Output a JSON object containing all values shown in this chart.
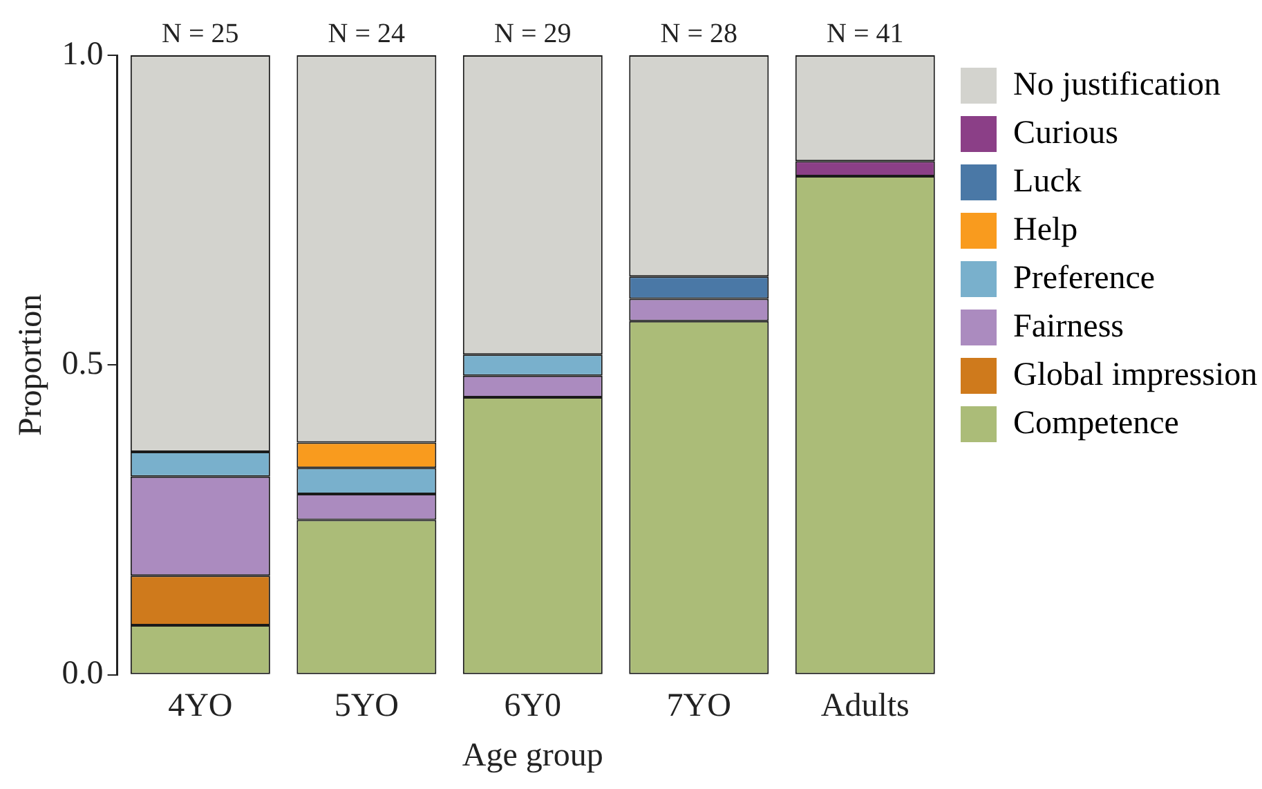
{
  "chart_data": {
    "type": "bar",
    "stacked": true,
    "xlabel": "Age group",
    "ylabel": "Proportion",
    "categories": [
      "4YO",
      "5YO",
      "6Y0",
      "7YO",
      "Adults"
    ],
    "series": [
      {
        "name": "Competence",
        "color": "#abbc78",
        "values": [
          0.08,
          0.25,
          0.448,
          0.571,
          0.805
        ]
      },
      {
        "name": "Global impression",
        "color": "#cf7a1c",
        "values": [
          0.08,
          null,
          null,
          null,
          null
        ]
      },
      {
        "name": "Fairness",
        "color": "#ab8bbf",
        "values": [
          0.16,
          0.042,
          0.035,
          0.036,
          null
        ]
      },
      {
        "name": "Preference",
        "color": "#79b0cc",
        "values": [
          0.04,
          0.042,
          0.034,
          null,
          null
        ]
      },
      {
        "name": "Help",
        "color": "#f99b1e",
        "values": [
          null,
          0.041,
          null,
          null,
          null
        ]
      },
      {
        "name": "Luck",
        "color": "#4a78a6",
        "values": [
          null,
          null,
          null,
          0.036,
          null
        ]
      },
      {
        "name": "Curious",
        "color": "#8b3f87",
        "values": [
          null,
          null,
          null,
          null,
          0.024
        ]
      },
      {
        "name": "No justification",
        "color": "#d3d3ce",
        "values": [
          0.64,
          0.625,
          0.483,
          0.357,
          0.171
        ]
      }
    ],
    "ylim": [
      0,
      1
    ],
    "yticks": [
      {
        "value": 0,
        "label": "0.0"
      },
      {
        "value": 0.5,
        "label": "0.5"
      },
      {
        "value": 1,
        "label": "1.0"
      }
    ],
    "grid": false,
    "legend": "right",
    "annotations": [
      {
        "text": "N = 25",
        "x": "4YO",
        "y": 1
      },
      {
        "text": "N = 24",
        "x": "5YO",
        "y": 1
      },
      {
        "text": "N = 29",
        "x": "6Y0",
        "y": 1
      },
      {
        "text": "N = 28",
        "x": "7YO",
        "y": 1
      },
      {
        "text": "N = 41",
        "x": "Adults",
        "y": 1
      }
    ]
  }
}
